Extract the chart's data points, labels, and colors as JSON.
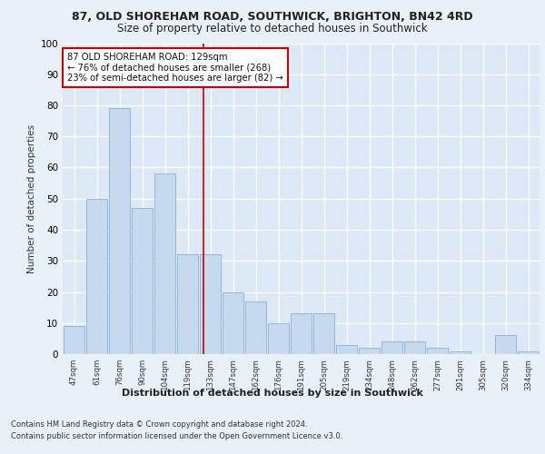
{
  "title1": "87, OLD SHOREHAM ROAD, SOUTHWICK, BRIGHTON, BN42 4RD",
  "title2": "Size of property relative to detached houses in Southwick",
  "xlabel": "Distribution of detached houses by size in Southwick",
  "ylabel": "Number of detached properties",
  "categories": [
    "47sqm",
    "61sqm",
    "76sqm",
    "90sqm",
    "104sqm",
    "119sqm",
    "133sqm",
    "147sqm",
    "162sqm",
    "176sqm",
    "191sqm",
    "205sqm",
    "219sqm",
    "234sqm",
    "248sqm",
    "262sqm",
    "277sqm",
    "291sqm",
    "305sqm",
    "320sqm",
    "334sqm"
  ],
  "values": [
    9,
    50,
    79,
    47,
    58,
    32,
    32,
    20,
    17,
    10,
    13,
    13,
    3,
    2,
    4,
    4,
    2,
    1,
    0,
    6,
    1
  ],
  "bar_color": "#c6d9ee",
  "bar_edge_color": "#8ab0d4",
  "annotation_text": "87 OLD SHOREHAM ROAD: 129sqm\n← 76% of detached houses are smaller (268)\n23% of semi-detached houses are larger (82) →",
  "annotation_box_color": "#ffffff",
  "annotation_box_edge": "#cc0000",
  "footer1": "Contains HM Land Registry data © Crown copyright and database right 2024.",
  "footer2": "Contains public sector information licensed under the Open Government Licence v3.0.",
  "ylim": [
    0,
    100
  ],
  "fig_bg_color": "#e8f0f8",
  "plot_bg_color": "#dce8f5",
  "grid_color": "#ffffff",
  "red_line_x": 5.7
}
